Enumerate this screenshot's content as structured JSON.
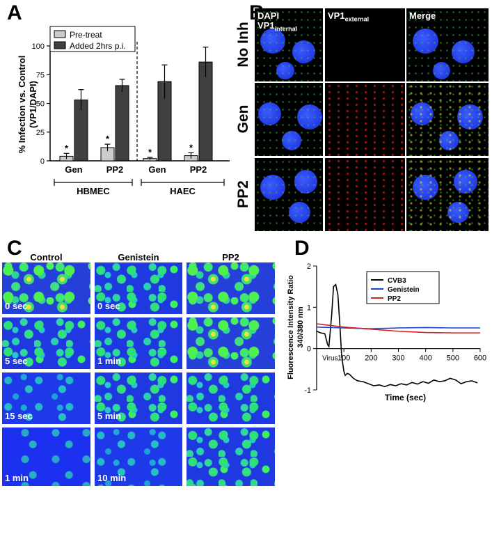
{
  "panels": {
    "a": "A",
    "b": "B",
    "c": "C",
    "d": "D"
  },
  "chart_data": [
    {
      "type": "bar",
      "ylabel": "% Infection vs. Control (VP1/DAPI)",
      "ylim": [
        0,
        100
      ],
      "yticks": [
        "0",
        "25",
        "50",
        "75",
        "100"
      ],
      "categories": [
        "Gen",
        "PP2",
        "Gen",
        "PP2"
      ],
      "groups": [
        "HBMEC",
        "HAEC"
      ],
      "series": [
        {
          "name": "Pre-treat",
          "color": "#cccccc",
          "values": [
            4,
            11.5,
            2,
            4.5
          ],
          "errors": [
            2.5,
            3,
            1,
            2.5
          ]
        },
        {
          "name": "Added 2hrs p.i.",
          "color": "#404040",
          "values": [
            53,
            65.5,
            69,
            86
          ],
          "errors": [
            9,
            5.5,
            14.5,
            13
          ]
        }
      ],
      "significance": [
        "*",
        "*",
        "*",
        "*"
      ],
      "legend_position": "top-left"
    },
    {
      "type": "line",
      "ylabel_line1": "Fluorescence Intensity Ratio",
      "ylabel_line2": "340/380 nm",
      "xlabel": "Time (sec)",
      "xlim": [
        0,
        600
      ],
      "ylim": [
        -1,
        2
      ],
      "xticks": [
        "100",
        "200",
        "300",
        "400",
        "500",
        "600"
      ],
      "yticks": [
        "-1",
        "0",
        "1",
        "2"
      ],
      "annotation": "Virus",
      "legend_position": "top-right",
      "series": [
        {
          "name": "CVB3",
          "color": "#000000",
          "x": [
            0,
            15,
            30,
            40,
            45,
            55,
            62,
            70,
            78,
            85,
            92,
            100,
            105,
            112,
            120,
            135,
            150,
            170,
            190,
            210,
            230,
            250,
            270,
            290,
            310,
            330,
            350,
            370,
            390,
            410,
            430,
            450,
            470,
            490,
            510,
            530,
            550,
            570,
            590
          ],
          "y": [
            0.42,
            0.38,
            0.36,
            0.1,
            0.05,
            0.8,
            1.5,
            1.55,
            1.3,
            0.6,
            -0.2,
            -0.55,
            -0.65,
            -0.6,
            -0.62,
            -0.72,
            -0.78,
            -0.8,
            -0.85,
            -0.9,
            -0.88,
            -0.92,
            -0.87,
            -0.9,
            -0.85,
            -0.88,
            -0.82,
            -0.86,
            -0.8,
            -0.84,
            -0.76,
            -0.8,
            -0.78,
            -0.72,
            -0.76,
            -0.85,
            -0.8,
            -0.78,
            -0.83
          ]
        },
        {
          "name": "Genistein",
          "color": "#1f3fd0",
          "x": [
            0,
            100,
            200,
            300,
            400,
            500,
            600
          ],
          "y": [
            0.52,
            0.5,
            0.48,
            0.5,
            0.51,
            0.5,
            0.5
          ]
        },
        {
          "name": "PP2",
          "color": "#d02020",
          "x": [
            0,
            100,
            200,
            300,
            400,
            500,
            600
          ],
          "y": [
            0.6,
            0.52,
            0.47,
            0.42,
            0.39,
            0.38,
            0.38
          ]
        }
      ]
    }
  ],
  "panel_b": {
    "col_headers": [
      {
        "main": "DAPI",
        "line2": "VP1",
        "sub": "internal"
      },
      {
        "main": "VP1",
        "sub": "external"
      },
      {
        "main": "Merge"
      }
    ],
    "row_headers": [
      "No Inh",
      "Gen",
      "PP2"
    ]
  },
  "panel_c": {
    "col_headers": [
      "Control",
      "Genistein",
      "PP2"
    ],
    "rows": [
      [
        "0 sec",
        "0 sec",
        ""
      ],
      [
        "5 sec",
        "1 min",
        ""
      ],
      [
        "15 sec",
        "5 min",
        ""
      ],
      [
        "1 min",
        "10 min",
        ""
      ]
    ]
  }
}
